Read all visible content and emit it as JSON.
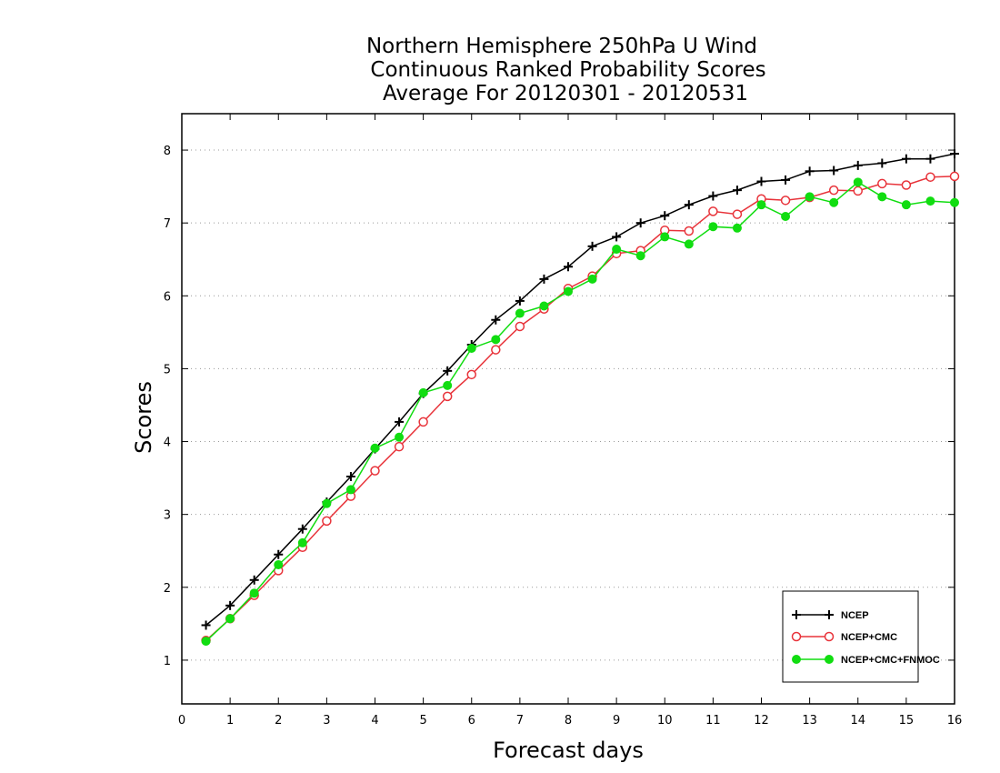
{
  "chart_data": {
    "type": "line",
    "title_lines": [
      "Northern Hemisphere 250hPa U Wind",
      "Continuous Ranked Probability Scores",
      "Average For 20120301 - 20120531"
    ],
    "xlabel": "Forecast days",
    "ylabel": "Scores",
    "xlim": [
      0,
      16
    ],
    "ylim": [
      0.4,
      8.5
    ],
    "xticks": [
      "0",
      "1",
      "2",
      "3",
      "4",
      "5",
      "6",
      "7",
      "8",
      "9",
      "10",
      "11",
      "12",
      "13",
      "14",
      "15",
      "16"
    ],
    "yticks": [
      "1",
      "2",
      "3",
      "4",
      "5",
      "6",
      "7",
      "8"
    ],
    "grid": "horizontal dotted",
    "legend_position": "bottom-right",
    "x": [
      0.5,
      1,
      1.5,
      2,
      2.5,
      3,
      3.5,
      4,
      4.5,
      5,
      5.5,
      6,
      6.5,
      7,
      7.5,
      8,
      8.5,
      9,
      9.5,
      10,
      10.5,
      11,
      11.5,
      12,
      12.5,
      13,
      13.5,
      14,
      14.5,
      15,
      15.5,
      16
    ],
    "series": [
      {
        "name": "NCEP",
        "color": "#000000",
        "marker": "plus",
        "values": [
          1.48,
          1.75,
          2.1,
          2.45,
          2.8,
          3.17,
          3.52,
          3.9,
          4.27,
          4.66,
          4.97,
          5.33,
          5.67,
          5.93,
          6.23,
          6.4,
          6.68,
          6.81,
          7.0,
          7.1,
          7.25,
          7.37,
          7.45,
          7.57,
          7.59,
          7.71,
          7.72,
          7.79,
          7.82,
          7.88,
          7.88,
          7.95
        ]
      },
      {
        "name": "NCEP+CMC",
        "color": "#e8333a",
        "marker": "open-circle",
        "values": [
          1.27,
          1.57,
          1.89,
          2.23,
          2.55,
          2.91,
          3.25,
          3.6,
          3.93,
          4.27,
          4.62,
          4.92,
          5.26,
          5.58,
          5.82,
          6.1,
          6.27,
          6.58,
          6.62,
          6.9,
          6.89,
          7.16,
          7.12,
          7.33,
          7.31,
          7.35,
          7.45,
          7.44,
          7.54,
          7.52,
          7.63,
          7.64
        ]
      },
      {
        "name": "NCEP+CMC+FNMOC",
        "color": "#11dd11",
        "marker": "filled-circle",
        "values": [
          1.26,
          1.57,
          1.92,
          2.31,
          2.61,
          3.15,
          3.34,
          3.91,
          4.06,
          4.67,
          4.77,
          5.28,
          5.4,
          5.76,
          5.86,
          6.06,
          6.23,
          6.64,
          6.55,
          6.81,
          6.71,
          6.95,
          6.93,
          7.25,
          7.09,
          7.36,
          7.28,
          7.56,
          7.36,
          7.25,
          7.3,
          7.28
        ]
      }
    ]
  }
}
